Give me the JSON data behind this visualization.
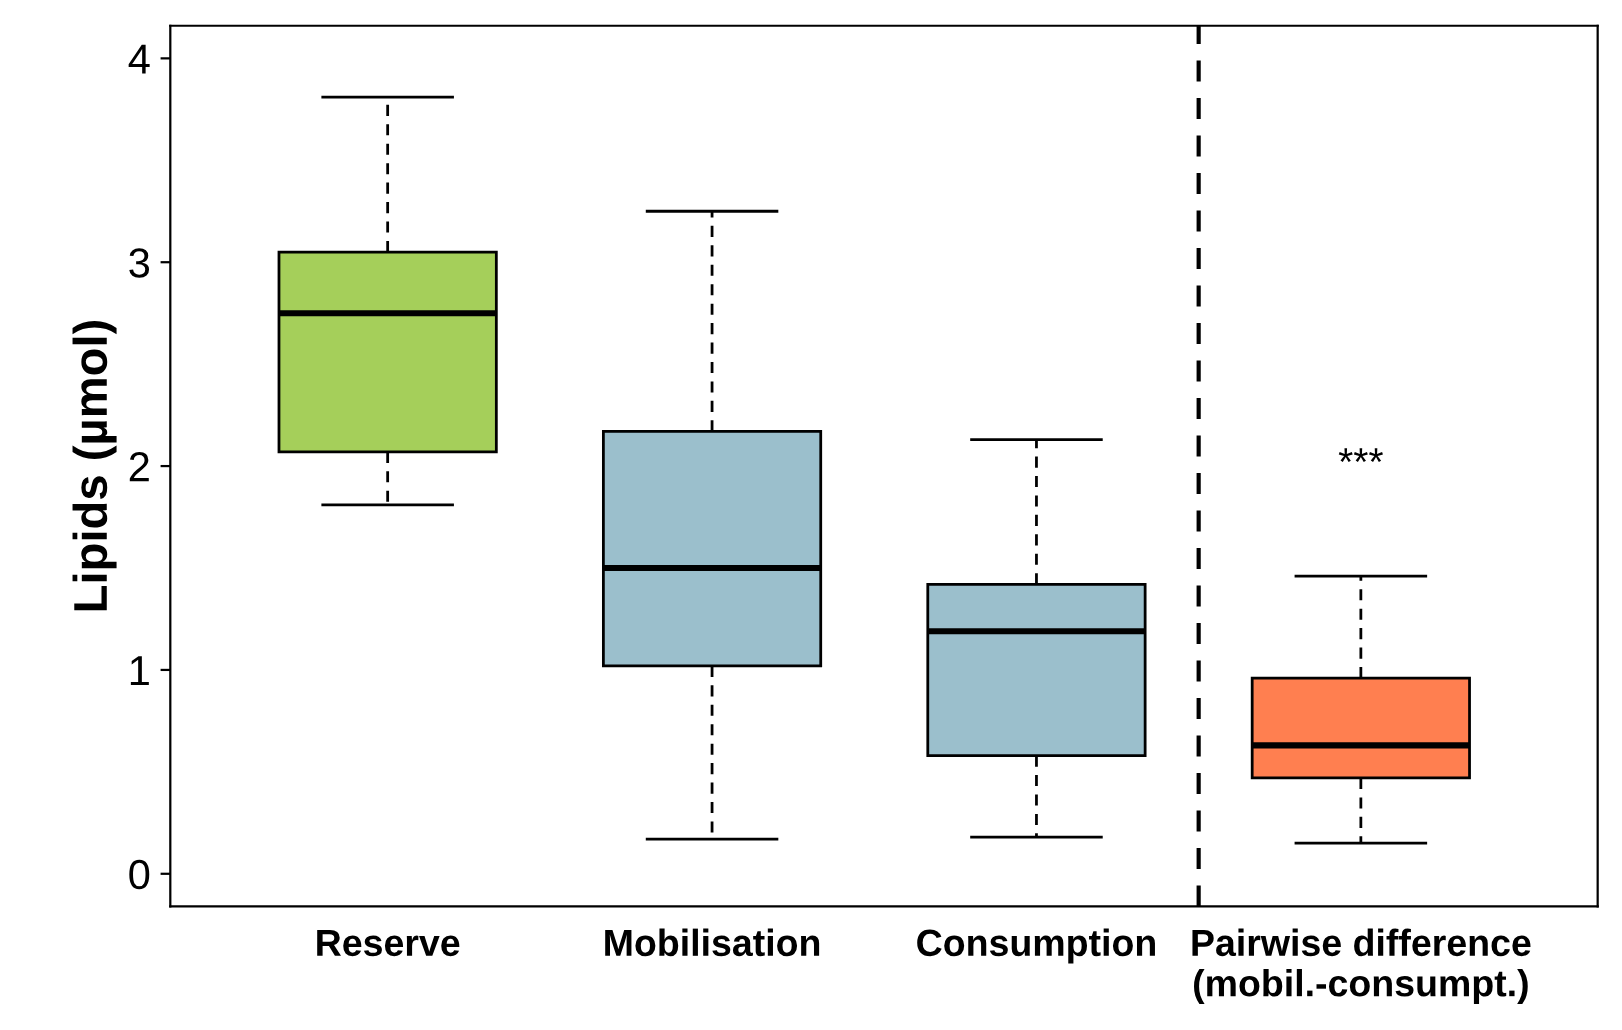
{
  "chart_data": {
    "type": "box",
    "ylabel": "Lipids (µmol)",
    "categories": [
      "Reserve",
      "Mobilisation",
      "Consumption",
      "Pairwise difference\n(mobil.-consumpt.)"
    ],
    "colors": [
      "#a5cf5a",
      "#9bbfcc",
      "#9bbfcc",
      "#ff7f50"
    ],
    "boxes": [
      {
        "low": 1.81,
        "q1": 2.07,
        "median": 2.75,
        "q3": 3.05,
        "high": 3.81
      },
      {
        "low": 0.17,
        "q1": 1.02,
        "median": 1.5,
        "q3": 2.17,
        "high": 3.25
      },
      {
        "low": 0.18,
        "q1": 0.58,
        "median": 1.19,
        "q3": 1.42,
        "high": 2.13
      },
      {
        "low": 0.15,
        "q1": 0.47,
        "median": 0.63,
        "q3": 0.96,
        "high": 1.46
      }
    ],
    "ylim": [
      -0.16,
      4.16
    ],
    "yticks": [
      0,
      1,
      2,
      3,
      4
    ],
    "annotations": [
      "***"
    ],
    "grid": false,
    "legend": false
  }
}
